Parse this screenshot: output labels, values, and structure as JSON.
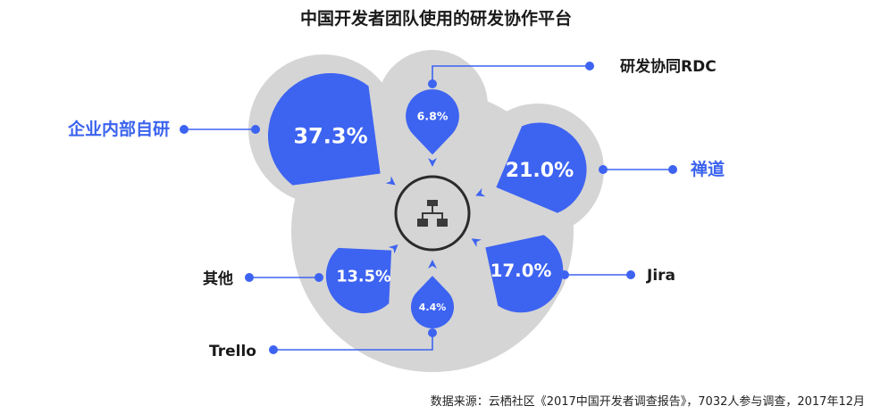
{
  "chart_data": {
    "type": "bubble",
    "title": "中国开发者团队使用的研发协作平台",
    "source": "数据来源：云栖社区《2017中国开发者调查报告》，7032人参与调查，2017年12月",
    "series": [
      {
        "name": "企业内部自研",
        "value": 37.3,
        "display": "37.3%",
        "highlight": true
      },
      {
        "name": "研发协同RDC",
        "value": 6.8,
        "display": "6.8%",
        "highlight": false
      },
      {
        "name": "禅道",
        "value": 21.0,
        "display": "21.0%",
        "highlight": true
      },
      {
        "name": "Jira",
        "value": 17.0,
        "display": "17.0%",
        "highlight": false
      },
      {
        "name": "Trello",
        "value": 4.4,
        "display": "4.4%",
        "highlight": false
      },
      {
        "name": "其他",
        "value": 13.5,
        "display": "13.5%",
        "highlight": false
      }
    ]
  },
  "colors": {
    "bubble": "#3d63f1",
    "backdrop": "#d5d5d5",
    "highlight_label": "#3b63ee",
    "center_ring": "#2b2b2b"
  },
  "center_icon": "org-chart-icon"
}
